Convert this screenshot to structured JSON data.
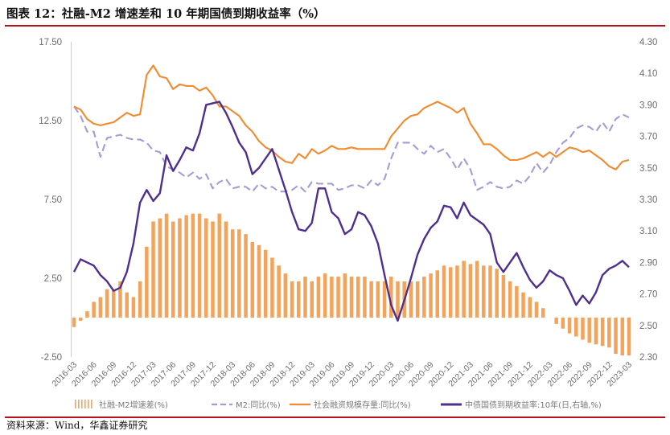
{
  "header": {
    "title": "图表 12：社融-M2 增速差和 10 年期国债到期收益率（%）"
  },
  "footer": {
    "source": "资料来源：Wind，华鑫证券研究"
  },
  "chart_data": {
    "type": "bar+line",
    "title": "图表 12：社融-M2 增速差和 10 年期国债到期收益率（%）",
    "left_axis": {
      "ylim": [
        -2.5,
        17.5
      ],
      "ticks": [
        "-2.50",
        "2.50",
        "7.50",
        "12.50",
        "17.50"
      ]
    },
    "right_axis": {
      "ylim": [
        2.3,
        4.3
      ],
      "ticks": [
        "2.30",
        "2.50",
        "2.70",
        "2.90",
        "3.10",
        "3.30",
        "3.50",
        "3.70",
        "3.90",
        "4.10",
        "4.30"
      ]
    },
    "categories": [
      "2016-03",
      "2016-04",
      "2016-05",
      "2016-06",
      "2016-07",
      "2016-08",
      "2016-09",
      "2016-10",
      "2016-11",
      "2016-12",
      "2017-01",
      "2017-02",
      "2017-03",
      "2017-04",
      "2017-05",
      "2017-06",
      "2017-07",
      "2017-08",
      "2017-09",
      "2017-10",
      "2017-11",
      "2017-12",
      "2018-01",
      "2018-02",
      "2018-03",
      "2018-04",
      "2018-05",
      "2018-06",
      "2018-07",
      "2018-08",
      "2018-09",
      "2018-10",
      "2018-11",
      "2018-12",
      "2019-01",
      "2019-02",
      "2019-03",
      "2019-04",
      "2019-05",
      "2019-06",
      "2019-07",
      "2019-08",
      "2019-09",
      "2019-10",
      "2019-11",
      "2019-12",
      "2020-01",
      "2020-02",
      "2020-03",
      "2020-04",
      "2020-05",
      "2020-06",
      "2020-07",
      "2020-08",
      "2020-09",
      "2020-10",
      "2020-11",
      "2020-12",
      "2021-01",
      "2021-02",
      "2021-03",
      "2021-04",
      "2021-05",
      "2021-06",
      "2021-07",
      "2021-08",
      "2021-09",
      "2021-10",
      "2021-11",
      "2021-12",
      "2022-01",
      "2022-02",
      "2022-03",
      "2022-04",
      "2022-05",
      "2022-06",
      "2022-07",
      "2022-08",
      "2022-09",
      "2022-10",
      "2022-11",
      "2022-12",
      "2023-01",
      "2023-02",
      "2023-03"
    ],
    "x_tick_labels": [
      "2016-03",
      "2016-06",
      "2016-09",
      "2016-12",
      "2017-03",
      "2017-06",
      "2017-09",
      "2017-12",
      "2018-03",
      "2018-06",
      "2018-09",
      "2018-12",
      "2019-03",
      "2019-06",
      "2019-09",
      "2019-12",
      "2020-03",
      "2020-06",
      "2020-09",
      "2020-12",
      "2021-03",
      "2021-06",
      "2021-09",
      "2021-12",
      "2022-03",
      "2022-06",
      "2022-09",
      "2022-12",
      "2023-03"
    ],
    "series": [
      {
        "name": "社融-M2增速差(%)",
        "axis": "left",
        "style": "bar",
        "color": "#f2a45c",
        "values": [
          -0.6,
          -0.2,
          0.4,
          1.0,
          1.3,
          1.8,
          1.8,
          2.3,
          1.6,
          1.3,
          2.3,
          4.5,
          6.1,
          6.3,
          6.6,
          6.1,
          6.3,
          6.5,
          6.6,
          6.6,
          6.3,
          6.1,
          6.6,
          6.1,
          5.6,
          5.6,
          5.3,
          4.8,
          4.6,
          4.3,
          3.8,
          3.3,
          2.8,
          2.3,
          2.3,
          2.6,
          2.3,
          2.6,
          2.8,
          2.6,
          2.6,
          2.8,
          2.6,
          2.6,
          2.6,
          2.3,
          2.3,
          2.3,
          2.6,
          2.3,
          2.3,
          2.3,
          2.3,
          2.6,
          2.8,
          3.0,
          3.3,
          3.2,
          3.3,
          3.6,
          3.4,
          3.6,
          3.3,
          3.3,
          3.1,
          2.7,
          2.3,
          2.0,
          1.6,
          1.3,
          1.0,
          0.6,
          0.0,
          -0.4,
          -0.7,
          -1.0,
          -1.2,
          -1.4,
          -1.6,
          -1.7,
          -1.8,
          -1.9,
          -2.3,
          -2.4,
          -2.4
        ]
      },
      {
        "name": "M2:同比(%)",
        "axis": "left",
        "style": "dashed",
        "color": "#a69bd3",
        "values": [
          13.4,
          12.8,
          11.8,
          11.8,
          10.2,
          11.4,
          11.5,
          11.6,
          11.4,
          11.3,
          11.3,
          11.1,
          10.6,
          10.5,
          9.6,
          9.4,
          9.2,
          8.9,
          9.2,
          8.8,
          9.1,
          8.2,
          8.6,
          8.8,
          8.2,
          8.3,
          8.3,
          8.0,
          8.5,
          8.2,
          8.3,
          8.0,
          8.0,
          8.1,
          8.4,
          8.0,
          8.6,
          8.5,
          8.5,
          8.5,
          8.1,
          8.2,
          8.4,
          8.4,
          8.2,
          8.7,
          8.4,
          8.8,
          10.1,
          11.1,
          11.1,
          11.1,
          10.7,
          10.4,
          10.9,
          10.5,
          10.7,
          10.1,
          9.4,
          10.1,
          9.4,
          8.1,
          8.3,
          8.6,
          8.3,
          8.2,
          8.3,
          8.7,
          8.5,
          9.0,
          9.8,
          9.2,
          9.7,
          10.5,
          11.1,
          11.4,
          12.0,
          12.2,
          12.1,
          11.8,
          12.4,
          11.8,
          12.6,
          12.9,
          12.7
        ]
      },
      {
        "name": "社会融资规模存量:同比(%)",
        "axis": "left",
        "style": "line",
        "color": "#f28a2e",
        "values": [
          13.4,
          13.2,
          12.6,
          12.3,
          12.2,
          12.3,
          12.4,
          12.7,
          13.0,
          12.8,
          12.9,
          15.4,
          16.0,
          15.3,
          15.2,
          14.5,
          14.8,
          14.7,
          14.7,
          14.4,
          14.6,
          14.1,
          13.4,
          13.4,
          13.1,
          12.8,
          12.2,
          11.8,
          11.2,
          10.8,
          10.6,
          10.2,
          9.9,
          9.8,
          10.4,
          10.1,
          10.7,
          10.4,
          10.6,
          10.9,
          10.7,
          10.7,
          10.8,
          10.7,
          10.7,
          10.7,
          10.7,
          10.7,
          11.5,
          12.0,
          12.5,
          12.8,
          12.9,
          13.3,
          13.5,
          13.7,
          13.5,
          13.3,
          13.0,
          13.3,
          12.3,
          11.7,
          11.0,
          11.0,
          10.7,
          10.3,
          10.0,
          10.0,
          10.1,
          10.3,
          10.5,
          10.2,
          10.5,
          10.2,
          10.5,
          10.8,
          10.7,
          10.5,
          10.6,
          10.3,
          10.0,
          9.6,
          9.4,
          9.9,
          10.0
        ]
      },
      {
        "name": "中债国债到期收益率:10年(日,右轴,%)",
        "axis": "right",
        "style": "line",
        "color": "#4f2f8e",
        "values": [
          2.84,
          2.92,
          2.9,
          2.88,
          2.82,
          2.78,
          2.72,
          2.74,
          2.84,
          3.02,
          3.28,
          3.36,
          3.29,
          3.34,
          3.58,
          3.48,
          3.55,
          3.63,
          3.61,
          3.72,
          3.9,
          3.91,
          3.92,
          3.85,
          3.76,
          3.66,
          3.6,
          3.46,
          3.5,
          3.56,
          3.62,
          3.49,
          3.36,
          3.22,
          3.11,
          3.1,
          3.15,
          3.37,
          3.37,
          3.22,
          3.18,
          3.08,
          3.11,
          3.22,
          3.2,
          3.13,
          3.02,
          2.82,
          2.63,
          2.53,
          2.66,
          2.8,
          2.95,
          3.05,
          3.12,
          3.16,
          3.26,
          3.25,
          3.18,
          3.28,
          3.2,
          3.17,
          3.14,
          3.08,
          2.9,
          2.84,
          2.9,
          2.96,
          2.87,
          2.79,
          2.74,
          2.78,
          2.85,
          2.82,
          2.8,
          2.72,
          2.63,
          2.69,
          2.64,
          2.71,
          2.82,
          2.86,
          2.88,
          2.91,
          2.87
        ]
      }
    ],
    "legend": {
      "position": "bottom",
      "entries": [
        "社融-M2增速差(%)",
        "M2:同比(%)",
        "社会融资规模存量:同比(%)",
        "中债国债到期收益率:10年(日,右轴,%)"
      ]
    }
  }
}
